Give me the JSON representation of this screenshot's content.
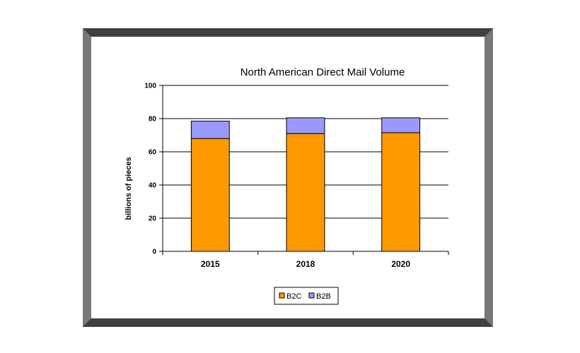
{
  "chart_data": {
    "type": "bar",
    "stacked": true,
    "title": "North American Direct Mail Volume",
    "xlabel": "",
    "ylabel": "billions of pieces",
    "categories": [
      "2015",
      "2018",
      "2020"
    ],
    "series": [
      {
        "name": "B2C",
        "color": "#ff9900",
        "values": [
          68,
          71,
          71.5
        ]
      },
      {
        "name": "B2B",
        "color": "#9999ff",
        "values": [
          10.5,
          9.5,
          9
        ]
      }
    ],
    "ylim": [
      0,
      100
    ],
    "yticks": [
      0,
      20,
      40,
      60,
      80,
      100
    ],
    "grid": true,
    "legend": "bottom-center"
  }
}
